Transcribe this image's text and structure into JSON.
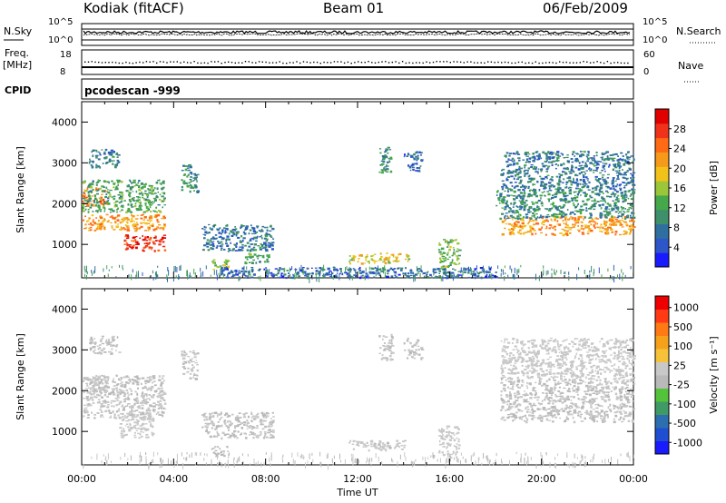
{
  "header": {
    "radar": "Kodiak (fitACF)",
    "beam": "Beam 01",
    "date": "06/Feb/2009"
  },
  "strip_panels": {
    "noise": {
      "left_label": "N.Sky",
      "left_ticks": [
        "10^5",
        "10^0"
      ],
      "right_label": "N.Search",
      "right_ticks": [
        "10^5",
        "10^0"
      ]
    },
    "frequency": {
      "left_label_line1": "Freq.",
      "left_label_line2": "[MHz]",
      "left_ticks": [
        "18",
        "8"
      ],
      "right_label": "Nave",
      "right_ticks": [
        "60",
        "0"
      ]
    },
    "cpid": {
      "label": "CPID",
      "value": "pcodescan -999"
    }
  },
  "colors": {
    "power_scale": [
      "#1a1aff",
      "#2d56c8",
      "#2f6fa0",
      "#3f8f6a",
      "#45a84a",
      "#9cc63a",
      "#f2c21a",
      "#f59a1a",
      "#ff6a14",
      "#f0321a",
      "#e00000"
    ],
    "velocity_scale": [
      "#1a1aff",
      "#1f4fd0",
      "#2d6fae",
      "#3f9a66",
      "#53c43a",
      "#b9b9b9",
      "#c8c8c8",
      "#f6c23a",
      "#f5a21a",
      "#ff7a14",
      "#ff3a14",
      "#ee0000"
    ]
  },
  "chart_data": [
    {
      "type": "heatmap",
      "title": "",
      "ylabel": "Slant Range [km]",
      "xlabel": "",
      "ylim": [
        180,
        4500
      ],
      "xlim": [
        0,
        24
      ],
      "yticks": [
        "1000",
        "2000",
        "3000",
        "4000"
      ],
      "colorbar": {
        "label": "Power [dB]",
        "ticks": [
          "4",
          "8",
          "12",
          "16",
          "20",
          "24",
          "28"
        ],
        "range": [
          0,
          32
        ]
      },
      "regions": [
        {
          "t": [
            0.0,
            1.1
          ],
          "r": [
            1950,
            2400
          ],
          "p": 24
        },
        {
          "t": [
            0.0,
            3.6
          ],
          "r": [
            1350,
            1750
          ],
          "p": 22
        },
        {
          "t": [
            1.8,
            3.6
          ],
          "r": [
            850,
            1250
          ],
          "p": 28
        },
        {
          "t": [
            0.0,
            3.6
          ],
          "r": [
            1800,
            2600
          ],
          "p": 12
        },
        {
          "t": [
            0.3,
            1.6
          ],
          "r": [
            2900,
            3350
          ],
          "p": 8
        },
        {
          "t": [
            4.3,
            5.0
          ],
          "r": [
            2300,
            3000
          ],
          "p": 10
        },
        {
          "t": [
            5.2,
            8.3
          ],
          "r": [
            850,
            1500
          ],
          "p": 8
        },
        {
          "t": [
            5.6,
            6.4
          ],
          "r": [
            400,
            650
          ],
          "p": 16
        },
        {
          "t": [
            7.0,
            8.2
          ],
          "r": [
            550,
            800
          ],
          "p": 12
        },
        {
          "t": [
            11.6,
            14.2
          ],
          "r": [
            550,
            800
          ],
          "p": 18
        },
        {
          "t": [
            12.9,
            13.5
          ],
          "r": [
            2750,
            3400
          ],
          "p": 10
        },
        {
          "t": [
            14.0,
            14.8
          ],
          "r": [
            2800,
            3300
          ],
          "p": 6
        },
        {
          "t": [
            15.5,
            16.4
          ],
          "r": [
            400,
            1150
          ],
          "p": 14
        },
        {
          "t": [
            18.2,
            24.0
          ],
          "r": [
            1250,
            1700
          ],
          "p": 22
        },
        {
          "t": [
            18.0,
            24.0
          ],
          "r": [
            1650,
            2350
          ],
          "p": 10
        },
        {
          "t": [
            18.2,
            24.0
          ],
          "r": [
            2350,
            3300
          ],
          "p": 8
        },
        {
          "t": [
            6.0,
            18.0
          ],
          "r": [
            200,
            450
          ],
          "p": 6
        }
      ]
    },
    {
      "type": "heatmap",
      "title": "",
      "ylabel": "Slant Range [km]",
      "xlabel": "Time UT",
      "ylim": [
        180,
        4500
      ],
      "xlim": [
        0,
        24
      ],
      "yticks": [
        "1000",
        "2000",
        "3000",
        "4000"
      ],
      "xticks": [
        "00:00",
        "04:00",
        "08:00",
        "12:00",
        "16:00",
        "20:00",
        "00:00"
      ],
      "colorbar": {
        "label": "Velocity [m s⁻¹]",
        "ticks": [
          "1000",
          "500",
          "100",
          "25",
          "-25",
          "-100",
          "-500",
          "-1000"
        ],
        "range": [
          -1200,
          1200
        ]
      },
      "regions": [
        {
          "t": [
            0.0,
            1.1
          ],
          "r": [
            1950,
            2400
          ],
          "v": -60
        },
        {
          "t": [
            0.0,
            3.6
          ],
          "r": [
            1350,
            2400
          ],
          "v": 0
        },
        {
          "t": [
            1.6,
            3.1
          ],
          "r": [
            850,
            1500
          ],
          "v": -150
        },
        {
          "t": [
            0.3,
            1.6
          ],
          "r": [
            2900,
            3350
          ],
          "v": 10
        },
        {
          "t": [
            4.3,
            5.0
          ],
          "r": [
            2300,
            3000
          ],
          "v": 0
        },
        {
          "t": [
            5.2,
            8.3
          ],
          "r": [
            850,
            1500
          ],
          "v": 0
        },
        {
          "t": [
            5.6,
            6.4
          ],
          "r": [
            400,
            650
          ],
          "v": 60
        },
        {
          "t": [
            11.6,
            14.2
          ],
          "r": [
            550,
            800
          ],
          "v": -20
        },
        {
          "t": [
            12.9,
            13.5
          ],
          "r": [
            2750,
            3400
          ],
          "v": 0
        },
        {
          "t": [
            14.0,
            14.8
          ],
          "r": [
            2800,
            3300
          ],
          "v": 0
        },
        {
          "t": [
            15.5,
            16.4
          ],
          "r": [
            400,
            1150
          ],
          "v": -80
        },
        {
          "t": [
            18.2,
            24.0
          ],
          "r": [
            1250,
            2350
          ],
          "v": 0
        },
        {
          "t": [
            18.2,
            24.0
          ],
          "r": [
            2350,
            3300
          ],
          "v": -50
        }
      ]
    }
  ]
}
